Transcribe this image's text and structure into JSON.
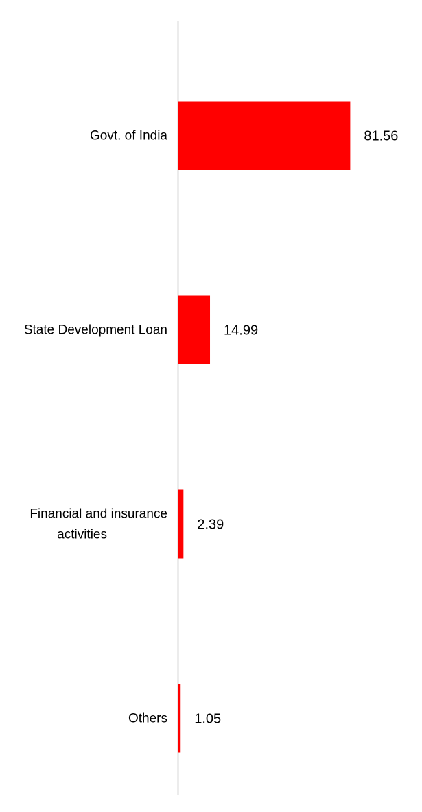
{
  "colors": {
    "bar": "#ff0000",
    "axis": "#d9d9d9",
    "text": "#000000",
    "background": "#ffffff"
  },
  "chart_data": {
    "type": "bar",
    "orientation": "horizontal",
    "categories": [
      "Govt. of India",
      "State Development Loan",
      "Financial and insurance activities",
      "Others"
    ],
    "category_lines": [
      [
        "Govt. of India"
      ],
      [
        "State Development Loan"
      ],
      [
        "Financial and insurance",
        "activities"
      ],
      [
        "Others"
      ]
    ],
    "values": [
      81.56,
      14.99,
      2.39,
      1.05
    ],
    "value_labels": [
      "81.56",
      "14.99",
      "2.39",
      "1.05"
    ],
    "xlim": [
      0,
      100
    ],
    "grid": false,
    "legend": "none"
  }
}
